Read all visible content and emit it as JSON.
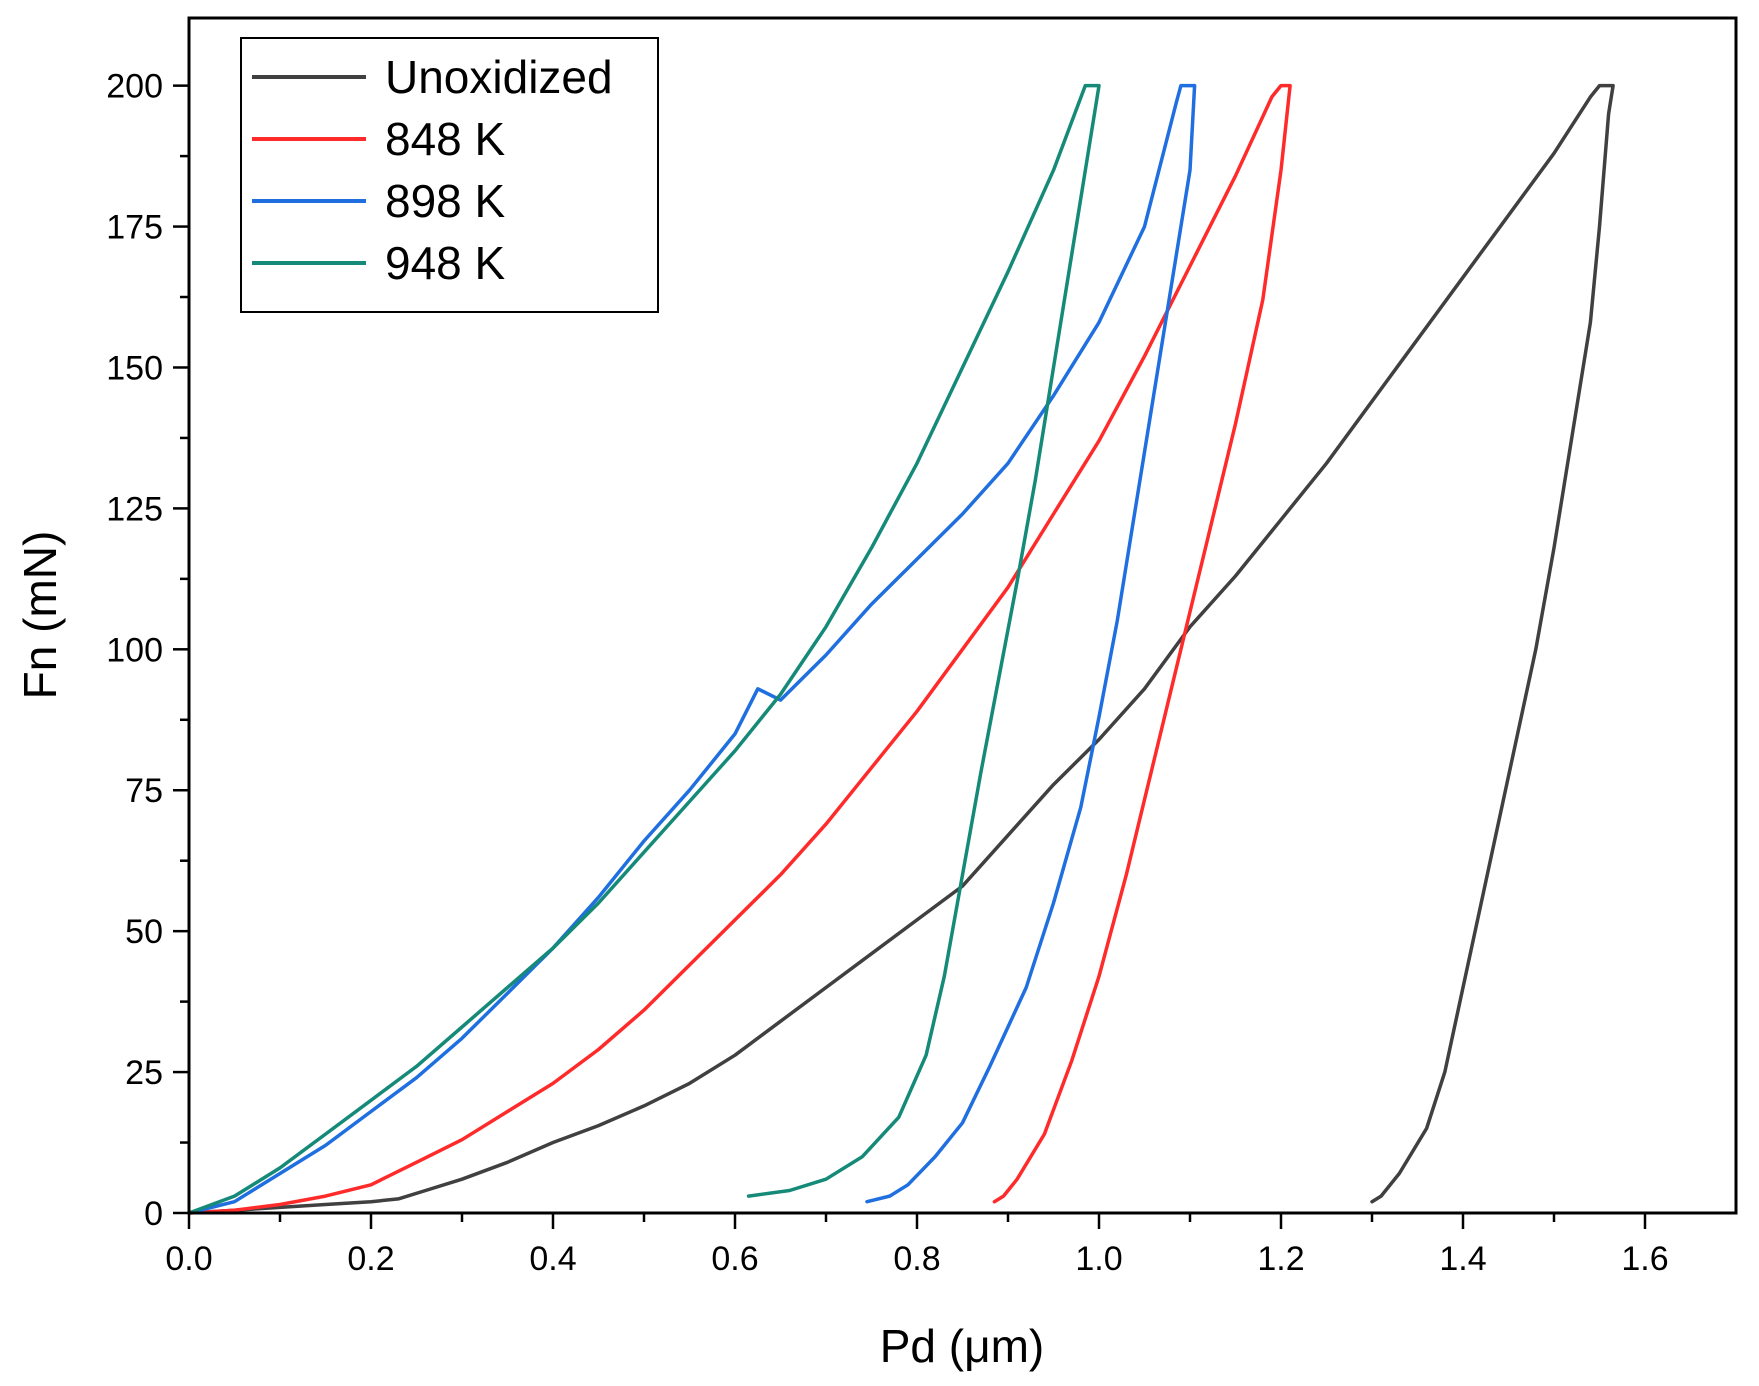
{
  "chart_data": {
    "type": "line",
    "title": "",
    "xlabel": "Pd (μm)",
    "ylabel": "Fn (mN)",
    "xlim": [
      0.0,
      1.7
    ],
    "ylim": [
      0,
      212
    ],
    "xticks": [
      "0.0",
      "0.2",
      "0.4",
      "0.6",
      "0.8",
      "1.0",
      "1.2",
      "1.4",
      "1.6"
    ],
    "yticks": [
      "0",
      "25",
      "50",
      "75",
      "100",
      "125",
      "150",
      "175",
      "200"
    ],
    "grid": false,
    "legend_position": "top-left",
    "series": [
      {
        "name": "Unoxidized",
        "color": "#404040",
        "points": [
          [
            0.0,
            0
          ],
          [
            0.05,
            0.5
          ],
          [
            0.1,
            1
          ],
          [
            0.15,
            1.5
          ],
          [
            0.2,
            2
          ],
          [
            0.23,
            2.5
          ],
          [
            0.26,
            4
          ],
          [
            0.3,
            6
          ],
          [
            0.35,
            9
          ],
          [
            0.4,
            12.5
          ],
          [
            0.45,
            15.5
          ],
          [
            0.5,
            19
          ],
          [
            0.55,
            23
          ],
          [
            0.6,
            28
          ],
          [
            0.65,
            34
          ],
          [
            0.7,
            40
          ],
          [
            0.75,
            46
          ],
          [
            0.8,
            52
          ],
          [
            0.85,
            58
          ],
          [
            0.9,
            67
          ],
          [
            0.95,
            76
          ],
          [
            1.0,
            84
          ],
          [
            1.05,
            93
          ],
          [
            1.1,
            104
          ],
          [
            1.15,
            113
          ],
          [
            1.2,
            123
          ],
          [
            1.25,
            133
          ],
          [
            1.3,
            144
          ],
          [
            1.35,
            155
          ],
          [
            1.4,
            166
          ],
          [
            1.45,
            177
          ],
          [
            1.5,
            188
          ],
          [
            1.54,
            198
          ],
          [
            1.55,
            200
          ],
          [
            1.565,
            200
          ],
          [
            1.56,
            195
          ],
          [
            1.55,
            175
          ],
          [
            1.54,
            158
          ],
          [
            1.52,
            138
          ],
          [
            1.5,
            118
          ],
          [
            1.48,
            100
          ],
          [
            1.46,
            85
          ],
          [
            1.44,
            70
          ],
          [
            1.42,
            55
          ],
          [
            1.4,
            40
          ],
          [
            1.38,
            25
          ],
          [
            1.36,
            15
          ],
          [
            1.33,
            7
          ],
          [
            1.31,
            3
          ],
          [
            1.3,
            2
          ]
        ]
      },
      {
        "name": "848 K",
        "color": "#ff2b2b",
        "points": [
          [
            0.0,
            0
          ],
          [
            0.05,
            0.5
          ],
          [
            0.1,
            1.5
          ],
          [
            0.15,
            3
          ],
          [
            0.2,
            5
          ],
          [
            0.25,
            9
          ],
          [
            0.3,
            13
          ],
          [
            0.35,
            18
          ],
          [
            0.4,
            23
          ],
          [
            0.45,
            29
          ],
          [
            0.5,
            36
          ],
          [
            0.55,
            44
          ],
          [
            0.6,
            52
          ],
          [
            0.65,
            60
          ],
          [
            0.7,
            69
          ],
          [
            0.75,
            79
          ],
          [
            0.8,
            89
          ],
          [
            0.85,
            100
          ],
          [
            0.9,
            111
          ],
          [
            0.95,
            124
          ],
          [
            1.0,
            137
          ],
          [
            1.05,
            152
          ],
          [
            1.1,
            168
          ],
          [
            1.15,
            184
          ],
          [
            1.19,
            198
          ],
          [
            1.2,
            200
          ],
          [
            1.21,
            200
          ],
          [
            1.2,
            185
          ],
          [
            1.18,
            162
          ],
          [
            1.15,
            140
          ],
          [
            1.12,
            120
          ],
          [
            1.09,
            100
          ],
          [
            1.06,
            80
          ],
          [
            1.03,
            60
          ],
          [
            1.0,
            42
          ],
          [
            0.97,
            27
          ],
          [
            0.94,
            14
          ],
          [
            0.91,
            6
          ],
          [
            0.895,
            3
          ],
          [
            0.885,
            2
          ]
        ]
      },
      {
        "name": "898 K",
        "color": "#1f6fe0",
        "points": [
          [
            0.0,
            0
          ],
          [
            0.05,
            2
          ],
          [
            0.1,
            7
          ],
          [
            0.15,
            12
          ],
          [
            0.2,
            18
          ],
          [
            0.25,
            24
          ],
          [
            0.3,
            31
          ],
          [
            0.35,
            39
          ],
          [
            0.4,
            47
          ],
          [
            0.45,
            56
          ],
          [
            0.5,
            66
          ],
          [
            0.55,
            75
          ],
          [
            0.6,
            85
          ],
          [
            0.625,
            93
          ],
          [
            0.65,
            91
          ],
          [
            0.7,
            99
          ],
          [
            0.75,
            108
          ],
          [
            0.8,
            116
          ],
          [
            0.85,
            124
          ],
          [
            0.9,
            133
          ],
          [
            0.95,
            145
          ],
          [
            1.0,
            158
          ],
          [
            1.05,
            175
          ],
          [
            1.085,
            197
          ],
          [
            1.09,
            200
          ],
          [
            1.105,
            200
          ],
          [
            1.1,
            185
          ],
          [
            1.08,
            165
          ],
          [
            1.06,
            145
          ],
          [
            1.04,
            125
          ],
          [
            1.02,
            105
          ],
          [
            1.0,
            88
          ],
          [
            0.98,
            72
          ],
          [
            0.95,
            55
          ],
          [
            0.92,
            40
          ],
          [
            0.88,
            26
          ],
          [
            0.85,
            16
          ],
          [
            0.82,
            10
          ],
          [
            0.79,
            5
          ],
          [
            0.77,
            3
          ],
          [
            0.745,
            2
          ]
        ]
      },
      {
        "name": "948 K",
        "color": "#158a78",
        "points": [
          [
            0.0,
            0
          ],
          [
            0.05,
            3
          ],
          [
            0.1,
            8
          ],
          [
            0.15,
            14
          ],
          [
            0.2,
            20
          ],
          [
            0.25,
            26
          ],
          [
            0.3,
            33
          ],
          [
            0.35,
            40
          ],
          [
            0.4,
            47
          ],
          [
            0.45,
            55
          ],
          [
            0.5,
            64
          ],
          [
            0.55,
            73
          ],
          [
            0.6,
            82
          ],
          [
            0.65,
            92
          ],
          [
            0.7,
            104
          ],
          [
            0.75,
            118
          ],
          [
            0.8,
            133
          ],
          [
            0.85,
            150
          ],
          [
            0.9,
            167
          ],
          [
            0.95,
            185
          ],
          [
            0.985,
            200
          ],
          [
            1.0,
            200
          ],
          [
            0.99,
            190
          ],
          [
            0.97,
            170
          ],
          [
            0.95,
            150
          ],
          [
            0.93,
            130
          ],
          [
            0.91,
            112
          ],
          [
            0.89,
            95
          ],
          [
            0.87,
            78
          ],
          [
            0.85,
            60
          ],
          [
            0.83,
            42
          ],
          [
            0.81,
            28
          ],
          [
            0.78,
            17
          ],
          [
            0.74,
            10
          ],
          [
            0.7,
            6
          ],
          [
            0.66,
            4
          ],
          [
            0.615,
            3
          ]
        ]
      }
    ]
  }
}
